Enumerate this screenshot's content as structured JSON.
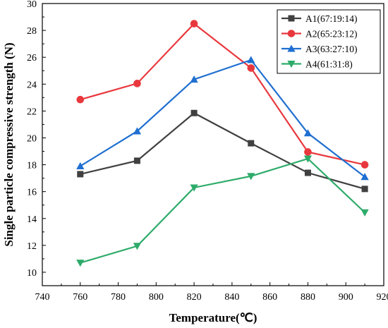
{
  "chart_data": {
    "type": "line",
    "xlabel": "Temperature(℃)",
    "ylabel": "Single particle compressive strength (N)",
    "xlim": [
      740,
      920
    ],
    "ylim": [
      9,
      30
    ],
    "x_ticks": [
      740,
      760,
      780,
      800,
      820,
      840,
      860,
      880,
      900,
      920
    ],
    "y_ticks": [
      10,
      12,
      14,
      16,
      18,
      20,
      22,
      24,
      26,
      28,
      30
    ],
    "legend_position": "top-right",
    "grid": false,
    "x": [
      760,
      790,
      820,
      850,
      880,
      910
    ],
    "series": [
      {
        "name": "A1(67:19:14)",
        "color": "#404040",
        "marker": "square",
        "values": [
          17.3,
          18.3,
          21.85,
          19.6,
          17.4,
          16.2
        ]
      },
      {
        "name": "A2(65:23:12)",
        "color": "#e8383d",
        "marker": "circle",
        "values": [
          22.85,
          24.05,
          28.5,
          25.2,
          18.95,
          18.0
        ]
      },
      {
        "name": "A3(63:27:10)",
        "color": "#1f6fd1",
        "marker": "triangle-up",
        "values": [
          17.9,
          20.5,
          24.35,
          25.8,
          20.35,
          17.1
        ]
      },
      {
        "name": "A4(61:31:8)",
        "color": "#2eab6a",
        "marker": "triangle-down",
        "values": [
          10.7,
          11.95,
          16.3,
          17.15,
          18.45,
          14.45
        ]
      }
    ]
  }
}
